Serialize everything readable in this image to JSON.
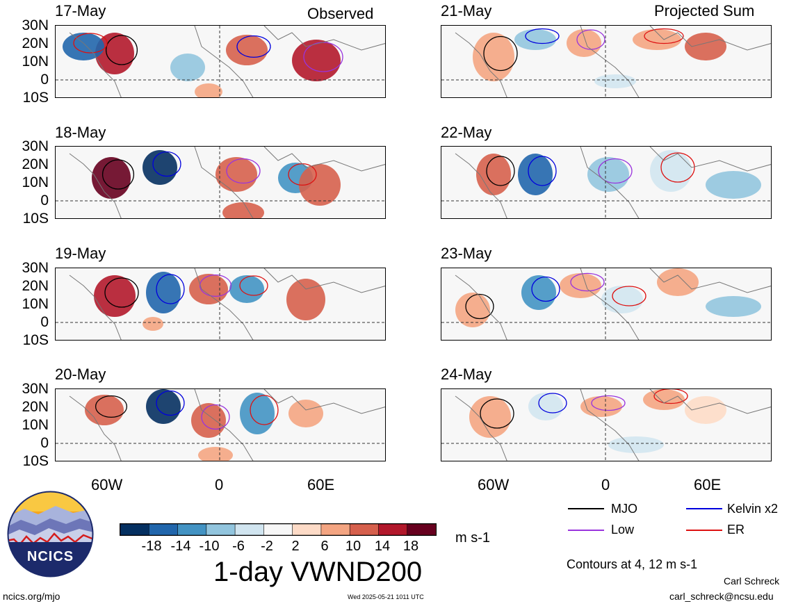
{
  "panels": {
    "left_corner": "Observed",
    "right_corner": "Projected Sum",
    "left_dates": [
      "17-May",
      "18-May",
      "19-May",
      "20-May"
    ],
    "right_dates": [
      "21-May",
      "22-May",
      "23-May",
      "24-May"
    ]
  },
  "lat_labels": [
    "30N",
    "20N",
    "10N",
    "0",
    "10S"
  ],
  "lon_labels": [
    "60W",
    "0",
    "60E"
  ],
  "colorbar": {
    "ticks": [
      "-18",
      "-14",
      "-10",
      "-6",
      "-2",
      "2",
      "6",
      "10",
      "14",
      "18"
    ],
    "colors": [
      "#053061",
      "#2166ac",
      "#4393c3",
      "#92c5de",
      "#d1e5f0",
      "#f7f7f7",
      "#fddbc7",
      "#f4a582",
      "#d6604d",
      "#b2182b",
      "#67001f"
    ],
    "units": "m s-1"
  },
  "legend": {
    "items": [
      {
        "label": "MJO",
        "color": "#000000"
      },
      {
        "label": "Kelvin x2",
        "color": "#0000dd"
      },
      {
        "label": "Low",
        "color": "#9933dd"
      },
      {
        "label": "ER",
        "color": "#dd1111"
      }
    ],
    "contours_note": "Contours at 4, 12 m s-1"
  },
  "title": "1-day VWND200",
  "logo_text": "NCICS",
  "footer": {
    "url": "ncics.org/mjo",
    "timestamp": "Wed 2025-05-21 1011 UTC",
    "author": "Carl Schreck",
    "email": "carl_schreck@ncsu.edu"
  }
}
